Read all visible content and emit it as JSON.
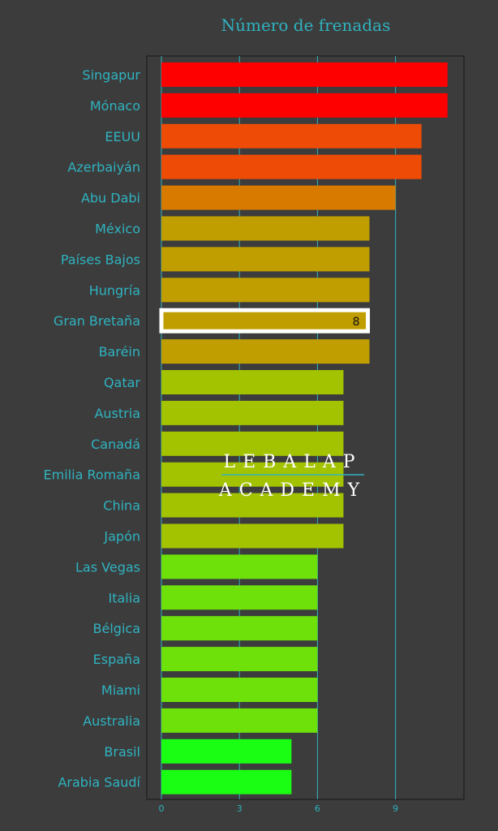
{
  "chart_data": {
    "type": "bar",
    "orientation": "horizontal",
    "title": "Número de frenadas",
    "categories": [
      "Singapur",
      "Mónaco",
      "EEUU",
      "Azerbaiyán",
      "Abu Dabi",
      "México",
      "Países Bajos",
      "Hungría",
      "Gran Bretaña",
      "Baréin",
      "Qatar",
      "Austria",
      "Canadá",
      "Emilia Romaña",
      "China",
      "Japón",
      "Las Vegas",
      "Italia",
      "Bélgica",
      "España",
      "Miami",
      "Australia",
      "Brasil",
      "Arabia Saudí"
    ],
    "values": [
      11,
      11,
      10,
      10,
      9,
      8,
      8,
      8,
      8,
      8,
      7,
      7,
      7,
      7,
      7,
      7,
      6,
      6,
      6,
      6,
      6,
      6,
      5,
      5
    ],
    "colors": [
      "#ff0000",
      "#ff0000",
      "#ee4b06",
      "#ee4b06",
      "#d87a00",
      "#c09e00",
      "#c09e00",
      "#c09e00",
      "#c09e00",
      "#c09e00",
      "#a3c200",
      "#a3c200",
      "#a3c200",
      "#a3c200",
      "#a3c200",
      "#a3c200",
      "#6ee00a",
      "#6ee00a",
      "#6ee00a",
      "#6ee00a",
      "#6ee00a",
      "#6ee00a",
      "#1afe13",
      "#1afe13"
    ],
    "highlight": {
      "category": "Gran Bretaña",
      "label": "8",
      "outline_color": "#ffffff"
    },
    "x_ticks": [
      0,
      3,
      6,
      9
    ],
    "xlim": [
      0,
      11.6
    ],
    "grid": "vertical",
    "axis_color": "#2fb3c0",
    "background": "#3c3c3c"
  },
  "watermark": {
    "line1": "LEBALAP",
    "line2": "ACADEMY"
  }
}
